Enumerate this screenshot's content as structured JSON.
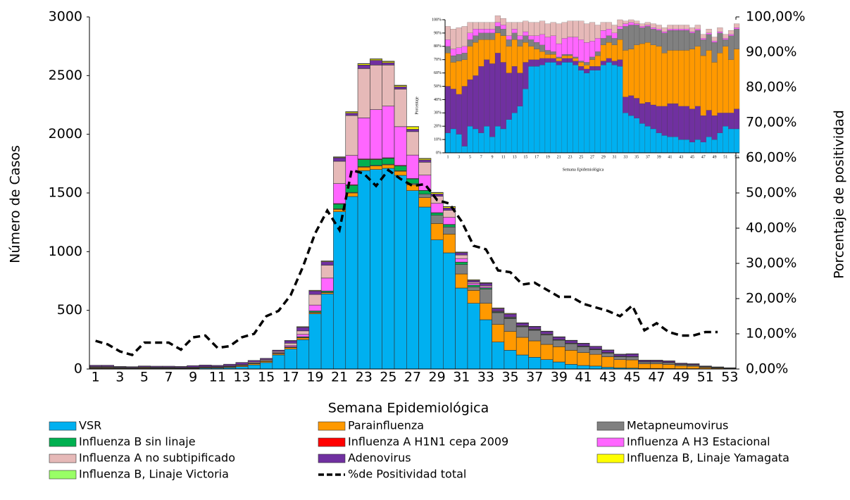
{
  "chart_data": [
    {
      "type": "bar",
      "stacked": true,
      "xlabel": "Semana Epidemiológica",
      "ylabel": "Número de Casos",
      "y2label": "Porcentaje  de positividad",
      "categories": [
        "1",
        null,
        "3",
        null,
        "5",
        null,
        "7",
        null,
        "9",
        null,
        "11",
        null,
        "13",
        null,
        "15",
        null,
        "17",
        null,
        "19",
        null,
        "21",
        null,
        "23",
        null,
        "25",
        null,
        "27",
        null,
        "29",
        null,
        "31",
        null,
        "33",
        null,
        "35",
        null,
        "37",
        null,
        "39",
        null,
        "41",
        null,
        "43",
        null,
        "45",
        null,
        "47",
        null,
        "49",
        null,
        "51",
        null,
        "53"
      ],
      "ylim": [
        0,
        3000
      ],
      "yticks": [
        0,
        500,
        1000,
        1500,
        2000,
        2500,
        3000
      ],
      "y2lim": [
        0,
        100
      ],
      "y2ticks": [
        {
          "value": 0,
          "label": "0,00%"
        },
        {
          "value": 10,
          "label": "10,00%"
        },
        {
          "value": 20,
          "label": "20,00%"
        },
        {
          "value": 30,
          "label": "30,00%"
        },
        {
          "value": 40,
          "label": "40,00%"
        },
        {
          "value": 50,
          "label": "50,00%"
        },
        {
          "value": 60,
          "label": "60,00%"
        },
        {
          "value": 70,
          "label": "70,00%"
        },
        {
          "value": 80,
          "label": "80,00%"
        },
        {
          "value": 90,
          "label": "90,00%"
        },
        {
          "value": 100,
          "label": "100,00%"
        }
      ],
      "series": [
        {
          "name": "VSR",
          "color": "#00b0f0",
          "values": [
            5,
            5,
            3,
            2,
            5,
            4,
            4,
            3,
            5,
            8,
            8,
            12,
            20,
            35,
            55,
            120,
            170,
            250,
            470,
            640,
            1340,
            1470,
            1690,
            1700,
            1710,
            1650,
            1520,
            1380,
            1100,
            990,
            690,
            560,
            420,
            230,
            160,
            120,
            100,
            80,
            60,
            40,
            30,
            25,
            15,
            10,
            8,
            5,
            5,
            4,
            3,
            3,
            2,
            1,
            1
          ]
        },
        {
          "name": "Parainfluenza",
          "color": "#ff9900",
          "values": [
            5,
            5,
            4,
            3,
            5,
            4,
            4,
            3,
            4,
            5,
            5,
            6,
            8,
            10,
            10,
            10,
            12,
            15,
            10,
            10,
            20,
            30,
            30,
            30,
            30,
            35,
            50,
            80,
            140,
            160,
            120,
            110,
            140,
            150,
            160,
            150,
            140,
            130,
            130,
            120,
            110,
            100,
            90,
            70,
            70,
            40,
            40,
            35,
            25,
            20,
            10,
            6,
            4
          ]
        },
        {
          "name": "Metapneumovirus",
          "color": "#808080",
          "values": [
            1,
            1,
            1,
            1,
            1,
            1,
            1,
            1,
            1,
            1,
            1,
            1,
            2,
            2,
            3,
            3,
            5,
            5,
            5,
            5,
            5,
            5,
            5,
            5,
            5,
            5,
            10,
            30,
            70,
            60,
            80,
            30,
            120,
            100,
            110,
            90,
            90,
            80,
            55,
            55,
            50,
            40,
            30,
            25,
            25,
            15,
            15,
            15,
            10,
            10,
            5,
            4,
            2
          ]
        },
        {
          "name": "Influenza B sin linaje",
          "color": "#00b050",
          "values": [
            3,
            3,
            2,
            2,
            2,
            2,
            2,
            2,
            2,
            2,
            2,
            2,
            2,
            2,
            2,
            2,
            3,
            5,
            10,
            10,
            40,
            60,
            60,
            50,
            50,
            40,
            40,
            30,
            20,
            20,
            20,
            15,
            10,
            5,
            5,
            3,
            3,
            3,
            2,
            2,
            2,
            2,
            1,
            1,
            1,
            1,
            1,
            1,
            1,
            1,
            1,
            1,
            0
          ]
        },
        {
          "name": "Influenza A H1N1 cepa 2009",
          "color": "#ff0000",
          "values": [
            0,
            0,
            0,
            0,
            0,
            0,
            0,
            0,
            0,
            0,
            0,
            0,
            0,
            0,
            0,
            0,
            0,
            0,
            0,
            0,
            5,
            5,
            5,
            5,
            5,
            5,
            3,
            2,
            2,
            2,
            1,
            0,
            0,
            0,
            0,
            0,
            0,
            0,
            0,
            0,
            0,
            0,
            0,
            0,
            0,
            0,
            0,
            0,
            0,
            0,
            0,
            0,
            0
          ]
        },
        {
          "name": " Influenza A H3 Estacional",
          "color": "#ff66ff",
          "values": [
            2,
            2,
            1,
            1,
            1,
            1,
            1,
            1,
            1,
            1,
            1,
            1,
            1,
            2,
            2,
            5,
            10,
            20,
            50,
            110,
            170,
            250,
            350,
            420,
            440,
            330,
            200,
            130,
            80,
            60,
            30,
            15,
            10,
            5,
            3,
            2,
            2,
            1,
            1,
            1,
            1,
            1,
            1,
            0,
            0,
            0,
            0,
            0,
            0,
            0,
            0,
            0,
            0
          ]
        },
        {
          "name": "Influenza A no subtipificado",
          "color": "#e6b9b8",
          "values": [
            5,
            5,
            4,
            4,
            3,
            3,
            3,
            3,
            3,
            3,
            3,
            5,
            5,
            8,
            8,
            10,
            20,
            30,
            90,
            110,
            190,
            340,
            420,
            380,
            350,
            320,
            200,
            110,
            60,
            60,
            30,
            10,
            10,
            5,
            5,
            5,
            5,
            5,
            3,
            3,
            3,
            3,
            3,
            3,
            3,
            2,
            2,
            2,
            2,
            2,
            1,
            1,
            1
          ]
        },
        {
          "name": "Adenovirus",
          "color": "#7030a0",
          "values": [
            10,
            10,
            6,
            6,
            8,
            8,
            8,
            8,
            12,
            13,
            10,
            13,
            17,
            13,
            10,
            10,
            20,
            30,
            30,
            30,
            30,
            20,
            30,
            40,
            20,
            20,
            20,
            20,
            20,
            20,
            20,
            15,
            20,
            20,
            25,
            20,
            20,
            20,
            20,
            20,
            20,
            20,
            20,
            15,
            20,
            10,
            10,
            10,
            7,
            7,
            5,
            3,
            1
          ]
        },
        {
          "name": "Influenza B, Linaje Yamagata",
          "color": "#ffff00",
          "values": [
            0,
            0,
            0,
            0,
            0,
            0,
            0,
            0,
            0,
            0,
            0,
            0,
            0,
            0,
            0,
            0,
            2,
            5,
            5,
            5,
            5,
            10,
            10,
            10,
            10,
            10,
            20,
            10,
            10,
            10,
            5,
            5,
            5,
            5,
            5,
            3,
            3,
            3,
            3,
            3,
            3,
            2,
            2,
            2,
            2,
            2,
            2,
            2,
            1,
            1,
            1,
            1,
            1
          ]
        },
        {
          "name": "Influenza B, Linaje Victoria",
          "color": "#99ff66",
          "values": [
            1,
            1,
            1,
            1,
            1,
            1,
            1,
            1,
            1,
            1,
            1,
            1,
            1,
            1,
            1,
            1,
            1,
            1,
            1,
            1,
            3,
            3,
            3,
            3,
            3,
            3,
            3,
            3,
            3,
            3,
            1,
            1,
            1,
            1,
            1,
            1,
            1,
            1,
            1,
            1,
            1,
            1,
            1,
            1,
            1,
            1,
            1,
            1,
            1,
            1,
            1,
            1,
            1
          ]
        },
        {
          "name": "%de Positividad total",
          "type": "line",
          "axis": "y2",
          "color": "#000000",
          "values": [
            8,
            7,
            5,
            4,
            7.5,
            7.5,
            7.5,
            5.5,
            9,
            9.5,
            6,
            6.5,
            9,
            10,
            15,
            16.5,
            21,
            29,
            38.5,
            45,
            39.5,
            56.5,
            55.5,
            52,
            56.5,
            54,
            52,
            52.5,
            48,
            47,
            42,
            35,
            34,
            28,
            27.5,
            24,
            24.5,
            22.5,
            20.5,
            20.5,
            18.5,
            17.5,
            16.5,
            15,
            18,
            11,
            13,
            10.5,
            9.5,
            9.5,
            10.5,
            10.5,
            null
          ]
        }
      ]
    },
    {
      "type": "bar",
      "stacked": true,
      "xlabel": "Semana Epidemiológica",
      "ylabel": "Porcentaje",
      "categories": [
        "1",
        null,
        "3",
        null,
        "5",
        null,
        "7",
        null,
        "9",
        null,
        "11",
        null,
        "13",
        null,
        "15",
        null,
        "17",
        null,
        "19",
        null,
        "21",
        null,
        "23",
        null,
        "25",
        null,
        "27",
        null,
        "29",
        null,
        "31",
        null,
        "33",
        null,
        "35",
        null,
        "37",
        null,
        "39",
        null,
        "41",
        null,
        "43",
        null,
        "45",
        null,
        "47",
        null,
        "49",
        null,
        "51",
        null,
        "53"
      ],
      "ylim": [
        0,
        100
      ],
      "yticks": [
        {
          "value": 0,
          "label": "0%"
        },
        {
          "value": 10,
          "label": "10%"
        },
        {
          "value": 20,
          "label": "20%"
        },
        {
          "value": 30,
          "label": "30%"
        },
        {
          "value": 40,
          "label": "40%"
        },
        {
          "value": 50,
          "label": "50%"
        },
        {
          "value": 60,
          "label": "60%"
        },
        {
          "value": 70,
          "label": "70%"
        },
        {
          "value": 80,
          "label": "80%"
        },
        {
          "value": 90,
          "label": "90%"
        },
        {
          "value": 100,
          "label": "100%"
        }
      ],
      "series": [
        {
          "color": "#00b0f0",
          "values": [
            15,
            18,
            14,
            5,
            20,
            18,
            15,
            20,
            12,
            20,
            18,
            25,
            30,
            35,
            48,
            65,
            65,
            66,
            68,
            68,
            66,
            68,
            68,
            66,
            62,
            60,
            62,
            62,
            66,
            68,
            66,
            65,
            30,
            28,
            26,
            22,
            20,
            18,
            15,
            13,
            12,
            12,
            10,
            10,
            8,
            10,
            8,
            12,
            10,
            15,
            20,
            18,
            18
          ]
        },
        {
          "color": "#7030a0",
          "values": [
            35,
            30,
            30,
            45,
            35,
            40,
            50,
            50,
            55,
            55,
            50,
            35,
            35,
            25,
            20,
            5,
            5,
            5,
            3,
            3,
            3,
            3,
            3,
            3,
            3,
            3,
            3,
            3,
            3,
            3,
            3,
            5,
            12,
            15,
            15,
            15,
            18,
            18,
            20,
            22,
            25,
            25,
            25,
            25,
            25,
            25,
            20,
            20,
            18,
            15,
            10,
            12,
            15
          ]
        },
        {
          "color": "#ff9900",
          "values": [
            25,
            20,
            25,
            20,
            25,
            25,
            20,
            15,
            18,
            15,
            20,
            20,
            20,
            20,
            15,
            10,
            8,
            5,
            3,
            3,
            2,
            2,
            2,
            2,
            3,
            3,
            5,
            8,
            12,
            12,
            12,
            15,
            35,
            35,
            40,
            45,
            45,
            45,
            45,
            40,
            40,
            40,
            42,
            42,
            45,
            45,
            45,
            45,
            40,
            45,
            50,
            40,
            45
          ]
        },
        {
          "color": "#808080",
          "values": [
            5,
            5,
            5,
            5,
            5,
            5,
            5,
            5,
            5,
            5,
            5,
            5,
            5,
            5,
            5,
            5,
            5,
            5,
            3,
            2,
            1,
            1,
            1,
            1,
            1,
            2,
            2,
            3,
            5,
            5,
            5,
            8,
            18,
            18,
            15,
            12,
            12,
            12,
            12,
            15,
            15,
            15,
            15,
            15,
            12,
            12,
            12,
            12,
            15,
            15,
            5,
            18,
            15
          ]
        },
        {
          "color": "#ff66ff",
          "values": [
            5,
            5,
            5,
            5,
            5,
            5,
            3,
            3,
            3,
            3,
            3,
            3,
            3,
            3,
            3,
            3,
            5,
            8,
            10,
            12,
            10,
            12,
            13,
            15,
            16,
            15,
            12,
            10,
            6,
            5,
            4,
            2,
            2,
            2,
            1,
            1,
            1,
            1,
            1,
            1,
            1,
            1,
            1,
            1,
            1,
            1,
            1,
            1,
            1,
            1,
            1,
            1,
            1
          ]
        },
        {
          "color": "#e6b9b8",
          "values": [
            10,
            15,
            15,
            15,
            8,
            5,
            5,
            5,
            5,
            5,
            5,
            10,
            5,
            10,
            8,
            10,
            10,
            10,
            10,
            10,
            15,
            12,
            12,
            12,
            14,
            14,
            14,
            10,
            6,
            5,
            6,
            5,
            2,
            2,
            2,
            2,
            2,
            3,
            3,
            3,
            3,
            3,
            3,
            3,
            3,
            3,
            3,
            3,
            3,
            3,
            3,
            3,
            3
          ]
        }
      ]
    }
  ]
}
